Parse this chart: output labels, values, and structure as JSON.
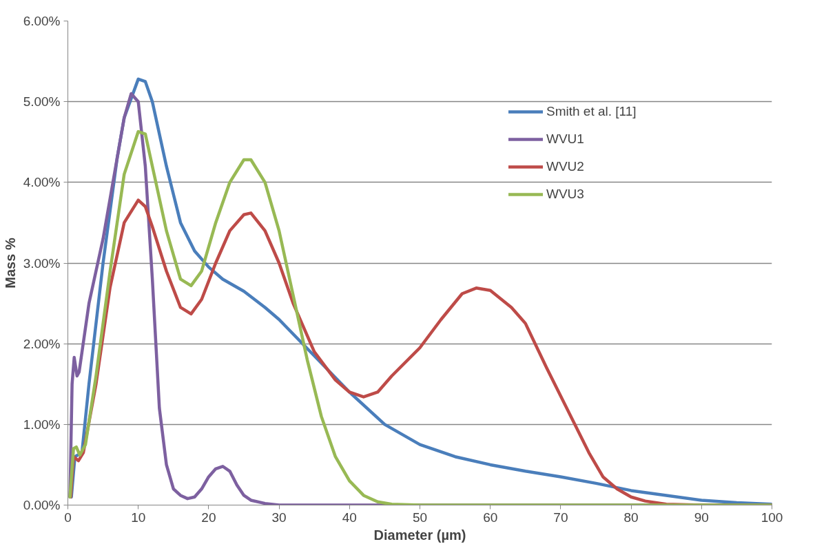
{
  "chart_data": {
    "type": "line",
    "xlabel": "Diameter (µm)",
    "ylabel": "Mass %",
    "xlim": [
      0,
      100
    ],
    "xticks": [
      0,
      10,
      20,
      30,
      40,
      50,
      60,
      70,
      80,
      90,
      100
    ],
    "ylim": [
      0,
      6
    ],
    "yticks": [
      {
        "value": 0,
        "label": "0.00%"
      },
      {
        "value": 1,
        "label": "1.00%"
      },
      {
        "value": 2,
        "label": "2.00%"
      },
      {
        "value": 3,
        "label": "3.00%"
      },
      {
        "value": 4,
        "label": "4.00%"
      },
      {
        "value": 5,
        "label": "5.00%"
      },
      {
        "value": 6,
        "label": "6.00%"
      }
    ],
    "grid": "y",
    "legend": "top right",
    "line_style": "solid",
    "marker": "none",
    "series": [
      {
        "name": "Smith et al. [11]",
        "color": "#4a7ebb",
        "x": [
          0.5,
          1,
          2,
          3,
          5,
          7,
          8,
          10,
          11,
          12,
          14,
          16,
          18,
          20,
          22,
          25,
          28,
          30,
          35,
          40,
          45,
          50,
          55,
          60,
          65,
          70,
          75,
          80,
          85,
          90,
          95,
          100
        ],
        "values": [
          0.1,
          0.6,
          0.65,
          1.5,
          3.0,
          4.3,
          4.8,
          5.28,
          5.25,
          5.0,
          4.2,
          3.5,
          3.15,
          2.95,
          2.8,
          2.65,
          2.45,
          2.3,
          1.85,
          1.4,
          1.0,
          0.75,
          0.6,
          0.5,
          0.42,
          0.35,
          0.27,
          0.18,
          0.12,
          0.06,
          0.03,
          0.01
        ]
      },
      {
        "name": "WVU1",
        "color": "#7d60a0",
        "x": [
          0.3,
          0.6,
          0.9,
          1.3,
          1.6,
          3,
          5,
          7,
          8,
          9,
          10,
          11,
          12,
          13,
          14,
          15,
          16,
          17,
          18,
          19,
          20,
          21,
          22,
          23,
          24,
          25,
          26,
          28,
          30,
          40,
          50,
          100
        ],
        "values": [
          0.1,
          1.5,
          1.83,
          1.6,
          1.65,
          2.5,
          3.3,
          4.3,
          4.8,
          5.1,
          5.0,
          4.2,
          2.8,
          1.2,
          0.5,
          0.2,
          0.12,
          0.08,
          0.1,
          0.2,
          0.35,
          0.45,
          0.48,
          0.42,
          0.25,
          0.12,
          0.06,
          0.02,
          0,
          0,
          0,
          0
        ]
      },
      {
        "name": "WVU2",
        "color": "#be4b48",
        "x": [
          0.4,
          0.8,
          1.5,
          2.2,
          4,
          6,
          8,
          10,
          11,
          12,
          14,
          16,
          17.5,
          19,
          21,
          23,
          25,
          26,
          28,
          30,
          32,
          35,
          38,
          40,
          42,
          44,
          46,
          50,
          53,
          56,
          58,
          60,
          63,
          65,
          68,
          70,
          72,
          74,
          76,
          78,
          80,
          82,
          85,
          90,
          100
        ],
        "values": [
          0.1,
          0.6,
          0.55,
          0.65,
          1.5,
          2.7,
          3.5,
          3.78,
          3.7,
          3.45,
          2.9,
          2.45,
          2.37,
          2.55,
          3.0,
          3.4,
          3.6,
          3.62,
          3.4,
          3.0,
          2.5,
          1.9,
          1.55,
          1.4,
          1.34,
          1.4,
          1.6,
          1.95,
          2.3,
          2.62,
          2.69,
          2.66,
          2.45,
          2.25,
          1.7,
          1.35,
          1.0,
          0.65,
          0.35,
          0.2,
          0.1,
          0.05,
          0.01,
          0,
          0
        ]
      },
      {
        "name": "WVU3",
        "color": "#98b954",
        "x": [
          0.3,
          0.8,
          1.2,
          1.7,
          2.5,
          4,
          6,
          8,
          10,
          11,
          12,
          14,
          16,
          17.5,
          19,
          21,
          23,
          25,
          26,
          28,
          30,
          32,
          34,
          36,
          38,
          40,
          42,
          44,
          46,
          50,
          100
        ],
        "values": [
          0.1,
          0.7,
          0.72,
          0.62,
          0.75,
          1.6,
          2.9,
          4.1,
          4.63,
          4.6,
          4.2,
          3.4,
          2.8,
          2.72,
          2.9,
          3.5,
          4.0,
          4.28,
          4.28,
          4.0,
          3.4,
          2.6,
          1.8,
          1.1,
          0.6,
          0.3,
          0.12,
          0.04,
          0.01,
          0,
          0
        ]
      }
    ]
  }
}
